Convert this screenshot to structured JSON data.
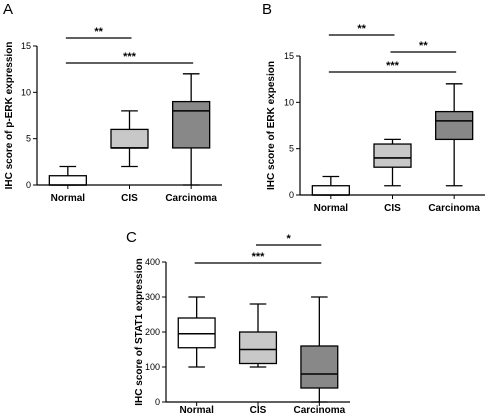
{
  "chart_data": [
    {
      "type": "box",
      "panel": "A",
      "title": "",
      "xlabel": "",
      "ylabel": "IHC score of p-ERK expression",
      "categories": [
        "Normal",
        "CIS",
        "Carcinoma"
      ],
      "ylim": [
        0,
        15
      ],
      "yticks": [
        "0",
        "5",
        "10",
        "15"
      ],
      "boxes": [
        {
          "min": 0,
          "q1": 0,
          "median": 0,
          "q3": 1,
          "max": 2,
          "color": "#ffffff"
        },
        {
          "min": 2,
          "q1": 4,
          "median": 4,
          "q3": 6,
          "max": 8,
          "color": "#c8c8c8"
        },
        {
          "min": 0,
          "q1": 4,
          "median": 8,
          "q3": 9,
          "max": 12,
          "color": "#888888"
        }
      ],
      "comparisons": [
        {
          "from": 0,
          "to": 1,
          "label": "**",
          "level": 0
        },
        {
          "from": 0,
          "to": 2,
          "label": "***",
          "level": 1
        }
      ]
    },
    {
      "type": "box",
      "panel": "B",
      "title": "",
      "xlabel": "",
      "ylabel": "IHC score of ERK expesion",
      "categories": [
        "Normal",
        "CIS",
        "Carcinoma"
      ],
      "ylim": [
        0,
        15
      ],
      "yticks": [
        "0",
        "5",
        "10",
        "15"
      ],
      "boxes": [
        {
          "min": 0,
          "q1": 0,
          "median": 0,
          "q3": 1,
          "max": 2,
          "color": "#ffffff"
        },
        {
          "min": 1,
          "q1": 3,
          "median": 4,
          "q3": 5.5,
          "max": 6,
          "color": "#c8c8c8"
        },
        {
          "min": 1,
          "q1": 6,
          "median": 8,
          "q3": 9,
          "max": 12,
          "color": "#888888"
        }
      ],
      "comparisons": [
        {
          "from": 0,
          "to": 1,
          "label": "**",
          "level": 0
        },
        {
          "from": 1,
          "to": 2,
          "label": "**",
          "level": 1
        },
        {
          "from": 0,
          "to": 2,
          "label": "***",
          "level": 2
        }
      ]
    },
    {
      "type": "box",
      "panel": "C",
      "title": "",
      "xlabel": "",
      "ylabel": "IHC score of STAT1 expression",
      "categories": [
        "Normal",
        "CIS",
        "Carcinoma"
      ],
      "ylim": [
        0,
        400
      ],
      "yticks": [
        "0",
        "100",
        "200",
        "300",
        "400"
      ],
      "boxes": [
        {
          "min": 100,
          "q1": 155,
          "median": 195,
          "q3": 240,
          "max": 300,
          "color": "#ffffff"
        },
        {
          "min": 100,
          "q1": 110,
          "median": 150,
          "q3": 200,
          "max": 280,
          "color": "#c8c8c8"
        },
        {
          "min": 0,
          "q1": 40,
          "median": 80,
          "q3": 160,
          "max": 300,
          "color": "#888888"
        }
      ],
      "comparisons": [
        {
          "from": 1,
          "to": 2,
          "label": "*",
          "level": 0
        },
        {
          "from": 0,
          "to": 2,
          "label": "***",
          "level": 1
        }
      ]
    }
  ]
}
